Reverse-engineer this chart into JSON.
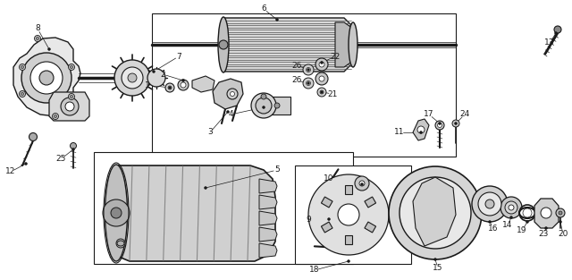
{
  "bg_color": "#ffffff",
  "lc": "#1a1a1a",
  "figsize": [
    6.4,
    3.13
  ],
  "dpi": 100,
  "fs": 6.5,
  "fw": "normal"
}
